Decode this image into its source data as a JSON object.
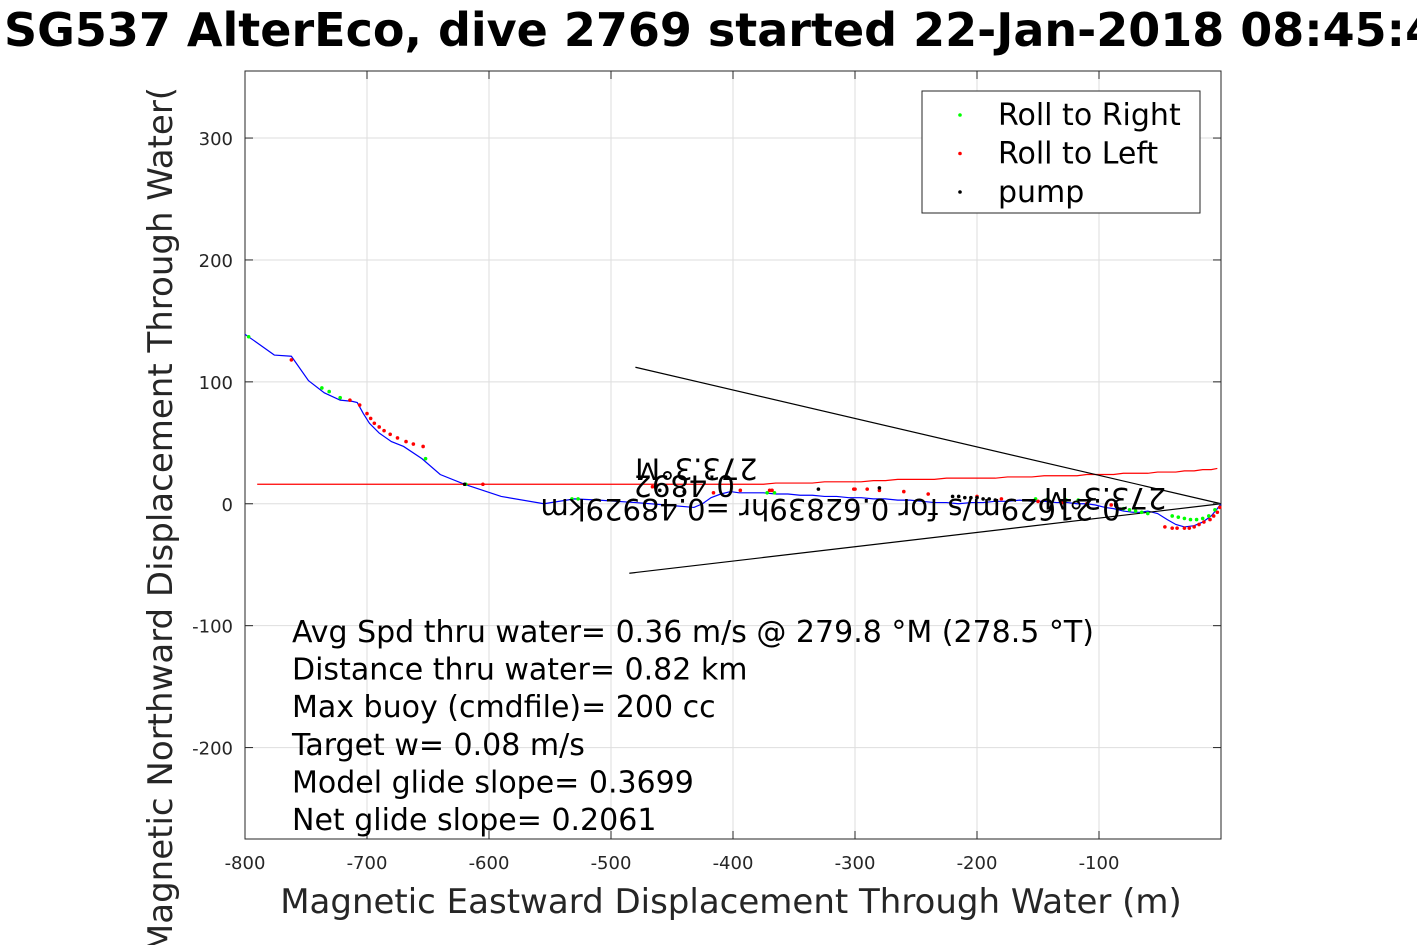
{
  "chart_data": {
    "type": "line",
    "title": "SG537 AlterEco, dive 2769 started 22-Jan-2018 08:45:4",
    "xlabel": "Magnetic Eastward Displacement Through Water (m)",
    "ylabel": "Magnetic Northward Displacement Through Water(",
    "xlim": [
      -800,
      0
    ],
    "ylim": [
      -275,
      355
    ],
    "x_ticks": [
      -800,
      -700,
      -600,
      -500,
      -400,
      -300,
      -200,
      -100
    ],
    "x_tick_labels": [
      "-800",
      "-700",
      "-600",
      "-500",
      "-400",
      "-300",
      "-200",
      "-100"
    ],
    "y_ticks": [
      300,
      200,
      100,
      0,
      -100,
      -200
    ],
    "y_tick_labels": [
      "300",
      "200",
      "100",
      "0",
      "-100",
      "-200"
    ],
    "grid": true,
    "legend": {
      "placement": "top-right",
      "entries": [
        {
          "label": "Roll to Right",
          "color": "#00ff00"
        },
        {
          "label": "Roll to Left",
          "color": "#ff0000"
        },
        {
          "label": "pump",
          "color": "#000000"
        }
      ]
    },
    "series": [
      {
        "color": "#0000ff",
        "x": [
          0,
          -3,
          -8,
          -15,
          -22,
          -30,
          -37,
          -44,
          -52,
          -60,
          -66,
          -72,
          -80,
          -88,
          -95,
          -103,
          -110,
          -118,
          -126,
          -135,
          -145,
          -155,
          -165,
          -175,
          -185,
          -195,
          -205,
          -215,
          -225,
          -235,
          -245,
          -255,
          -265,
          -275,
          -285,
          -295,
          -305,
          -315,
          -325,
          -335,
          -345,
          -355,
          -365,
          -375,
          -385,
          -395,
          -402,
          -410,
          -418,
          -425,
          -432,
          -455,
          -480,
          -510,
          -530,
          -555,
          -590,
          -620,
          -640,
          -655,
          -670,
          -680,
          -690,
          -698,
          -703,
          -708,
          -712,
          -722,
          -735,
          -748,
          -762,
          -776,
          -790,
          -800
        ],
        "y": [
          0,
          -4,
          -10,
          -15,
          -18,
          -19,
          -17,
          -13,
          -8,
          -6,
          -7,
          -7,
          -6,
          -4,
          -3,
          -1,
          0,
          0,
          1,
          1,
          2,
          2,
          3,
          2,
          2,
          1,
          1,
          0,
          1,
          1,
          2,
          3,
          3,
          4,
          4,
          5,
          5,
          6,
          6,
          7,
          7,
          8,
          8,
          9,
          9,
          9,
          10,
          8,
          5,
          0,
          -3,
          -1,
          1,
          3,
          4,
          0,
          6,
          16,
          24,
          37,
          47,
          51,
          58,
          66,
          74,
          83,
          84,
          85,
          91,
          101,
          121,
          122,
          132,
          139
        ]
      },
      {
        "color": "#ff0000",
        "x": [
          -3,
          -8,
          -15,
          -22,
          -30,
          -37,
          -44,
          -52,
          -60,
          -66,
          -72,
          -80,
          -88,
          -95,
          -103,
          -110,
          -118,
          -126,
          -135,
          -145,
          -155,
          -165,
          -175,
          -185,
          -195,
          -205,
          -215,
          -225,
          -235,
          -245,
          -255,
          -265,
          -275,
          -285,
          -295,
          -305,
          -315,
          -325,
          -335,
          -345,
          -355,
          -365,
          -375,
          -385,
          -395,
          -402,
          -410,
          -418,
          -425,
          -432,
          -455,
          -480,
          -510,
          -530,
          -555,
          -590,
          -620,
          -640,
          -655,
          -670,
          -680,
          -690,
          -698,
          -703,
          -708,
          -712,
          -722,
          -735,
          -748,
          -762,
          -776,
          -790
        ],
        "y": [
          29,
          28,
          28,
          27,
          27,
          26,
          26,
          26,
          25,
          25,
          25,
          25,
          24,
          24,
          24,
          24,
          23,
          23,
          23,
          23,
          22,
          22,
          22,
          21,
          21,
          21,
          21,
          21,
          20,
          20,
          20,
          20,
          19,
          19,
          18,
          18,
          18,
          18,
          17,
          17,
          17,
          17,
          16,
          16,
          16,
          16,
          16,
          16,
          16,
          16,
          16,
          16,
          16,
          16,
          16,
          16,
          16,
          16,
          16,
          16,
          16,
          16,
          16,
          16,
          16,
          16,
          16,
          16,
          16,
          16,
          16,
          16
        ]
      },
      {
        "color": "#000000",
        "x": [
          0,
          -480
        ],
        "y": [
          0,
          112
        ]
      },
      {
        "color": "#000000",
        "x": [
          0,
          -485
        ],
        "y": [
          0,
          -57
        ]
      }
    ],
    "markers": {
      "roll_right": {
        "color": "#00ff00",
        "x": [
          -797,
          -737,
          -731,
          -722,
          -652,
          -619,
          -532,
          -527,
          -372,
          -366,
          -152,
          -142,
          -127,
          -117,
          -80,
          -75,
          -70,
          -65,
          -60,
          -40,
          -35,
          -30,
          -25,
          -20,
          -15,
          -10,
          -5
        ],
        "y": [
          137,
          95,
          92,
          87,
          37,
          16,
          4,
          4,
          9,
          9,
          4,
          4,
          3,
          3,
          -4,
          -5,
          -6,
          -7,
          -8,
          -10,
          -11,
          -12,
          -13,
          -13,
          -12,
          -10,
          -5
        ]
      },
      "roll_left": {
        "color": "#ff0000",
        "x": [
          -762,
          -714,
          -706,
          -700,
          -697,
          -694,
          -690,
          -686,
          -681,
          -675,
          -668,
          -662,
          -654,
          -605,
          -466,
          -416,
          -394,
          -370,
          -368,
          -301,
          -300,
          -290,
          -280,
          -260,
          -240,
          -200,
          -180,
          -150,
          -130,
          -110,
          -90,
          -46,
          -40,
          -36,
          -30,
          -26,
          -22,
          -18,
          -14,
          -9,
          -6,
          -3,
          -1
        ],
        "y": [
          118,
          85,
          81,
          74,
          70,
          66,
          63,
          60,
          57,
          54,
          51,
          49,
          47,
          16,
          14,
          9,
          11,
          11,
          11,
          12,
          12,
          12,
          11,
          10,
          8,
          6,
          4,
          2,
          1,
          0,
          -1,
          -19,
          -20,
          -20,
          -20,
          -20,
          -19,
          -17,
          -15,
          -13,
          -10,
          -7,
          -3
        ]
      },
      "pump": {
        "color": "#000000",
        "x": [
          -620,
          -460,
          -440,
          -330,
          -280,
          -220,
          -215,
          -210,
          -205,
          -200,
          -195,
          -190,
          -185
        ],
        "y": [
          16,
          11,
          10,
          12,
          13,
          6,
          6,
          5,
          5,
          5,
          4,
          4,
          3
        ]
      }
    },
    "annotations": [
      "Avg Spd thru water=  0.36 m/s @ 279.8 °M (278.5 °T)",
      "Distance thru water=  0.82 km",
      "Max buoy (cmdfile)= 200 cc",
      "Target w= 0.08 m/s",
      "Model glide slope= 0.3699",
      "Net glide slope= 0.2061"
    ],
    "flipped_labels": [
      {
        "text": "273.3°M",
        "x": -430,
        "y": 37
      },
      {
        "text": "0.4892",
        "x": -440,
        "y": 23
      },
      {
        "text": "0.21629m/s for 0.62839hr =0.48929km",
        "x": -320,
        "y": 4
      },
      {
        "text": "273.3°M",
        "x": -95,
        "y": 13
      }
    ]
  }
}
